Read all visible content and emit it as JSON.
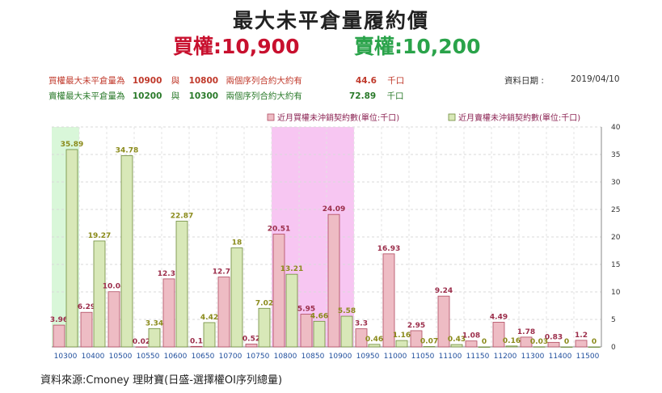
{
  "title": "最大未平倉量履約價",
  "subtitle_call": "買權:10,900",
  "subtitle_put": "賣權:10,200",
  "info": {
    "call": {
      "label": "買權最大未平倉量為",
      "strike1": "10900",
      "and": "與",
      "strike2": "10800",
      "desc": "兩個序列合約大約有",
      "amount": "44.6",
      "unit": "千口"
    },
    "put": {
      "label": "賣權最大未平倉量為",
      "strike1": "10200",
      "and": "與",
      "strike2": "10300",
      "desc": "兩個序列合約大約有",
      "amount": "72.89",
      "unit": "千口"
    },
    "date_label": "資料日期 :",
    "date_value": "2019/04/10"
  },
  "footer": "資料來源:Cmoney 理財寶(日盛-選擇權OI序列總量)",
  "colors": {
    "call_bar": "#eebcc4",
    "call_stroke": "#b04a60",
    "put_bar": "#d8e8b8",
    "put_stroke": "#6e8a3a",
    "call_label": "#9b2d4a",
    "put_label": "#8a8a1a",
    "call_highlight": "#f7c6f2",
    "put_highlight": "#d9f7d9"
  },
  "chart_data": {
    "type": "bar",
    "categories": [
      "10300",
      "10400",
      "10500",
      "10550",
      "10600",
      "10650",
      "10700",
      "10750",
      "10800",
      "10850",
      "10900",
      "10950",
      "11000",
      "11050",
      "11100",
      "11150",
      "11200",
      "11300",
      "11400",
      "11500"
    ],
    "series": [
      {
        "name": "近月買權未沖銷契約數(單位:千口)",
        "values": [
          3.96,
          6.29,
          10.04,
          0.02,
          12.37,
          0.1,
          12.71,
          0.52,
          20.51,
          5.95,
          24.09,
          3.3,
          16.93,
          2.95,
          9.24,
          1.08,
          4.49,
          1.78,
          0.83,
          1.2
        ]
      },
      {
        "name": "近月賣權未沖銷契約數(單位:千口)",
        "values": [
          35.89,
          19.27,
          34.78,
          3.34,
          22.87,
          4.42,
          18,
          7.02,
          13.21,
          4.66,
          5.58,
          0.46,
          1.16,
          0.07,
          0.43,
          0,
          0.16,
          0.03,
          0,
          0
        ]
      }
    ],
    "y_ticks": [
      "0",
      "5",
      "10",
      "15",
      "20",
      "25",
      "30",
      "35",
      "40"
    ],
    "ylim": [
      0,
      40
    ],
    "legend_position": "top",
    "grid": true,
    "highlight_put": [
      "10300"
    ],
    "highlight_call": [
      "10800",
      "10850",
      "10900"
    ]
  }
}
